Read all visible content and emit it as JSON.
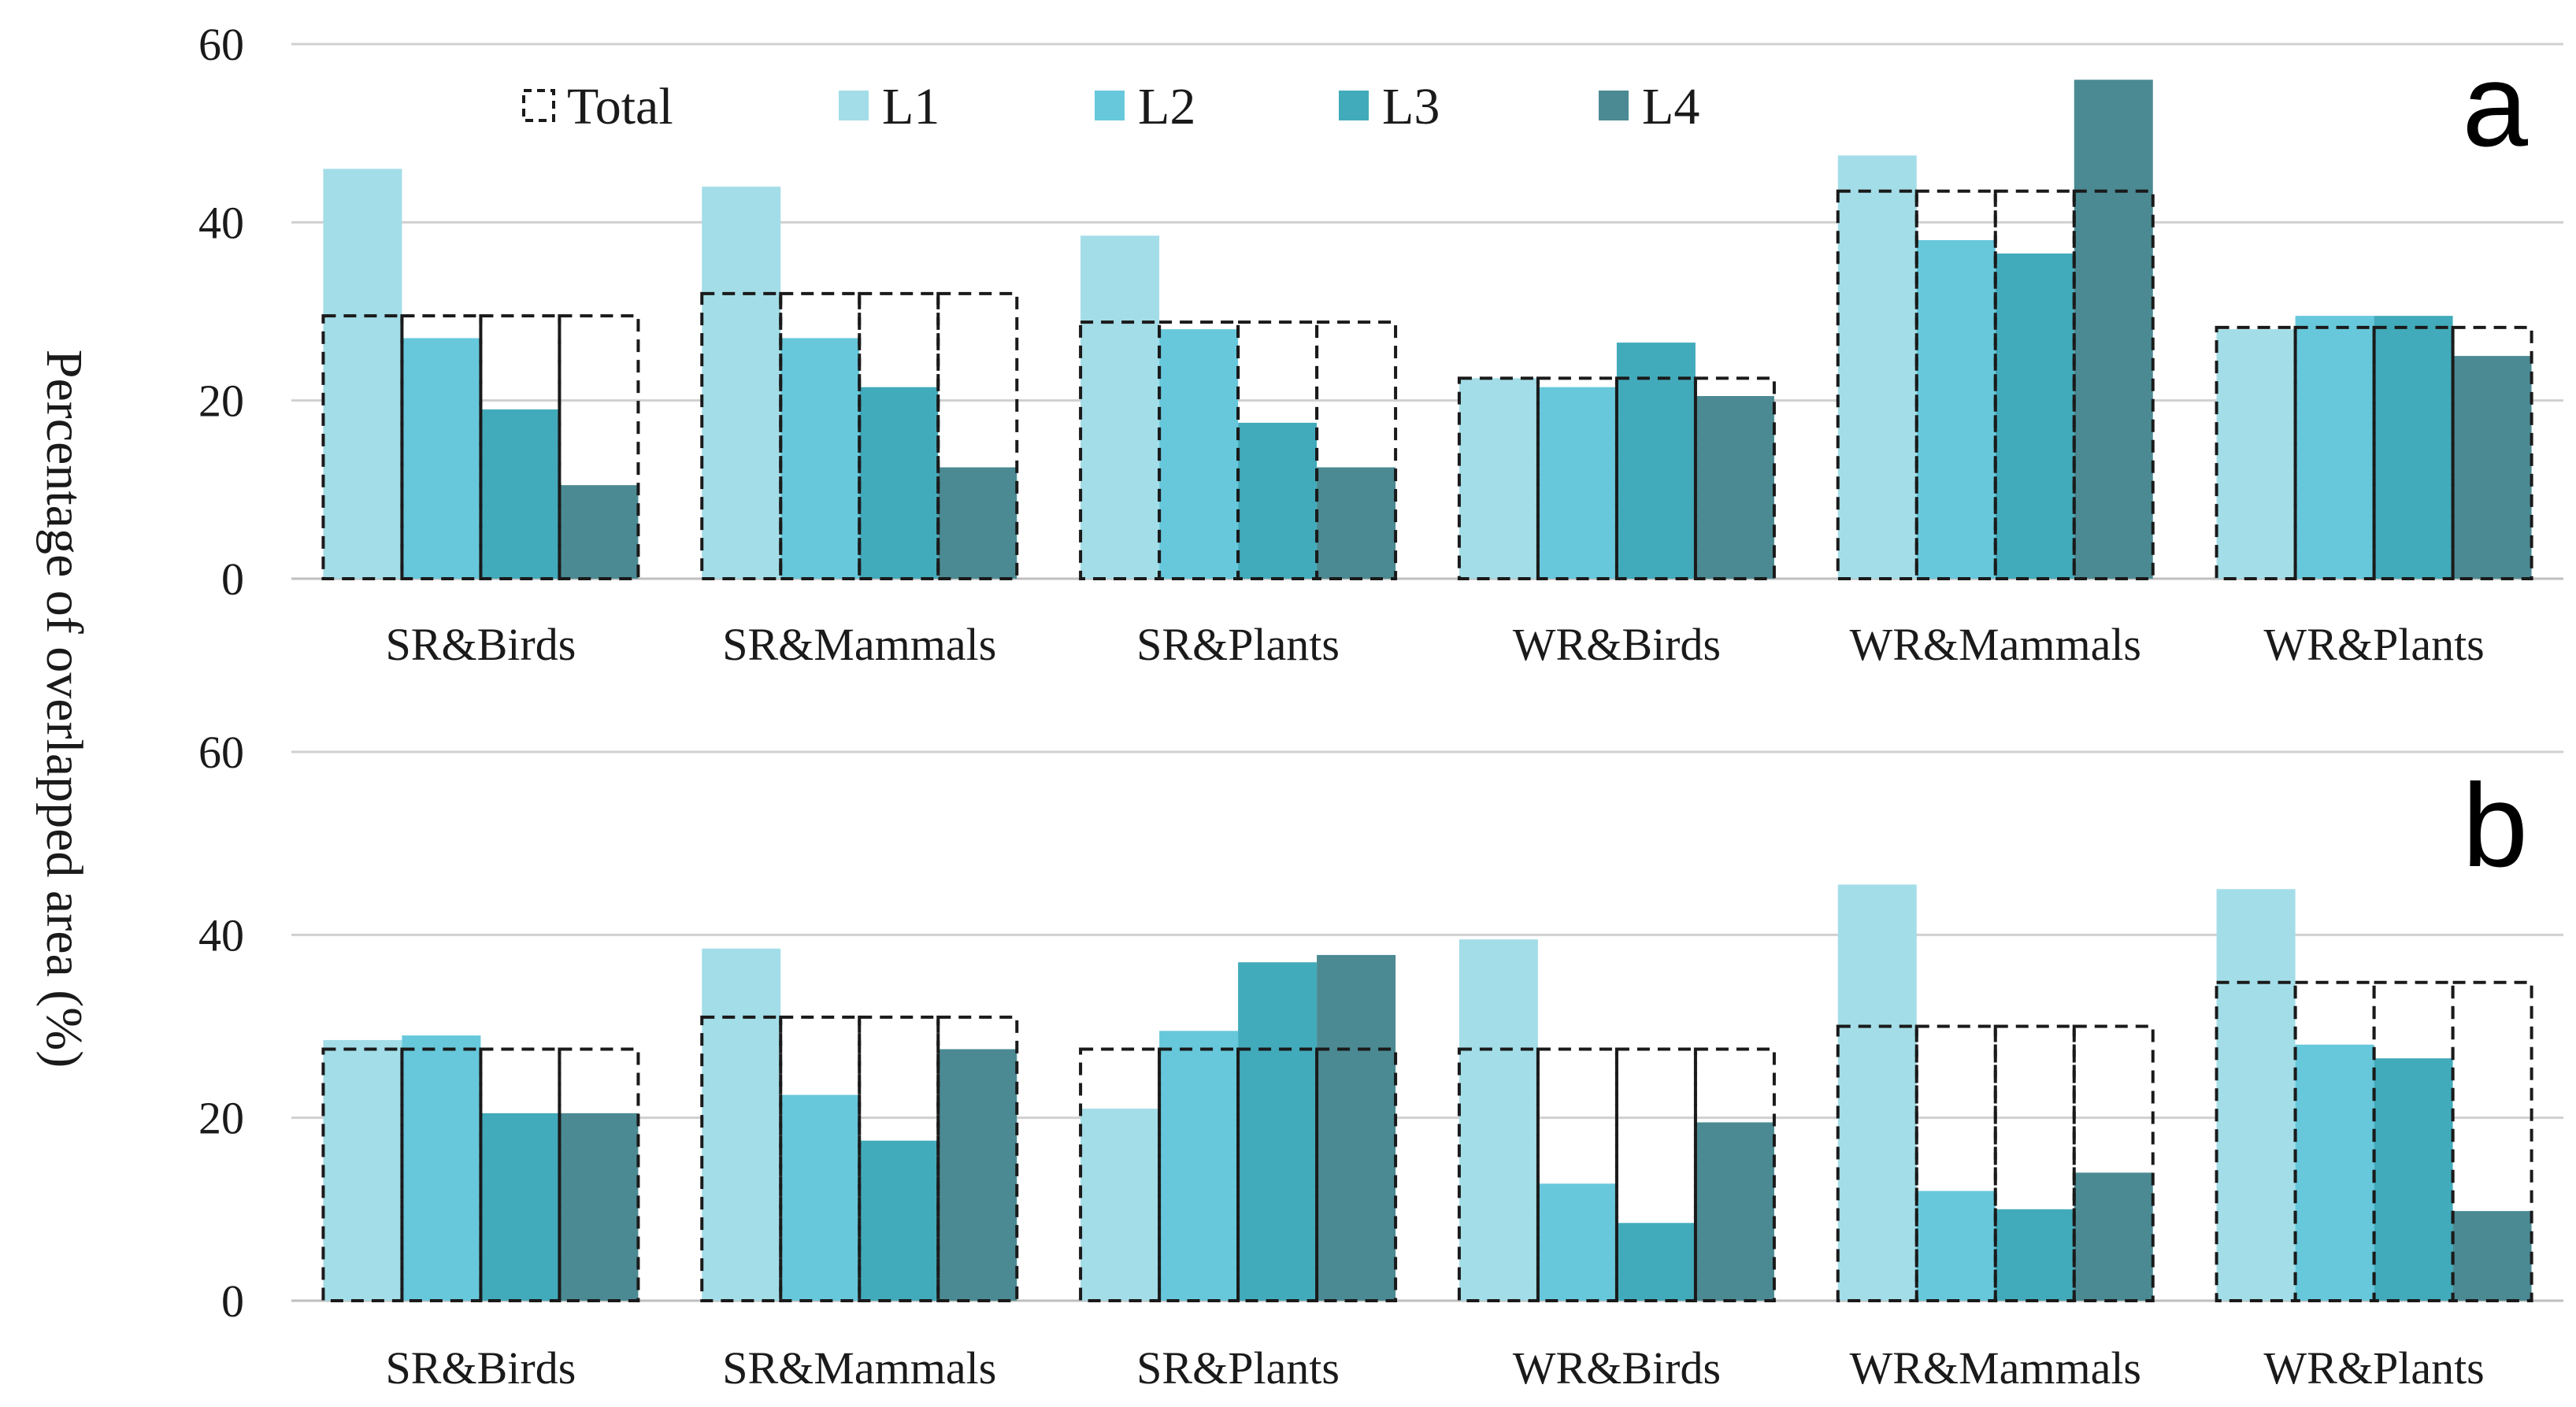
{
  "figure": {
    "ylabel": "Percentage of overlapped area (%)",
    "legend": {
      "entries": [
        {
          "key": "total",
          "label": "Total"
        },
        {
          "key": "L1",
          "label": "L1",
          "color": "#a3dde8"
        },
        {
          "key": "L2",
          "label": "L2",
          "color": "#67c8dc"
        },
        {
          "key": "L3",
          "label": "L3",
          "color": "#42abbb"
        },
        {
          "key": "L4",
          "label": "L4",
          "color": "#4b8a93"
        }
      ]
    },
    "colors": {
      "grid": "#d0d0d0",
      "axis": "#bfbfbf",
      "total_outline": "#1a1a1a"
    }
  },
  "chart_data": [
    {
      "panel": "a",
      "type": "bar",
      "title": "",
      "xlabel": "",
      "ylabel": "Percentage of overlapped area (%)",
      "ylim": [
        0,
        60
      ],
      "yticks": [
        "0",
        "20",
        "40",
        "60"
      ],
      "categories": [
        "SR&Birds",
        "SR&Mammals",
        "SR&Plants",
        "WR&Birds",
        "WR&Mammals",
        "WR&Plants"
      ],
      "total": [
        29.5,
        32,
        28.8,
        22.5,
        43.5,
        28.2
      ],
      "series": [
        {
          "name": "L1",
          "values": [
            46,
            44,
            38.5,
            22.5,
            47.5,
            28
          ]
        },
        {
          "name": "L2",
          "values": [
            27,
            27,
            28,
            21.5,
            38,
            29.5
          ]
        },
        {
          "name": "L3",
          "values": [
            19,
            21.5,
            17.5,
            26.5,
            36.5,
            29.5
          ]
        },
        {
          "name": "L4",
          "values": [
            10.5,
            12.5,
            12.5,
            20.5,
            56,
            25
          ]
        }
      ]
    },
    {
      "panel": "b",
      "type": "bar",
      "title": "",
      "xlabel": "",
      "ylabel": "Percentage of overlapped area (%)",
      "ylim": [
        0,
        60
      ],
      "yticks": [
        "0",
        "20",
        "40",
        "60"
      ],
      "categories": [
        "SR&Birds",
        "SR&Mammals",
        "SR&Plants",
        "WR&Birds",
        "WR&Mammals",
        "WR&Plants"
      ],
      "total": [
        27.5,
        31,
        27.5,
        27.5,
        30,
        34.8
      ],
      "series": [
        {
          "name": "L1",
          "values": [
            28.5,
            38.5,
            21,
            39.5,
            45.5,
            45
          ]
        },
        {
          "name": "L2",
          "values": [
            29,
            22.5,
            29.5,
            12.8,
            12,
            28
          ]
        },
        {
          "name": "L3",
          "values": [
            20.5,
            17.5,
            37,
            8.5,
            10,
            26.5
          ]
        },
        {
          "name": "L4",
          "values": [
            20.5,
            27.5,
            37.8,
            19.5,
            14,
            9.8
          ]
        }
      ]
    }
  ]
}
